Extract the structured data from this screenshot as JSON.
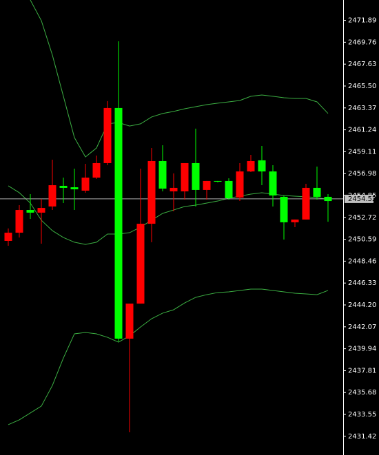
{
  "chart_data": {
    "type": "candlestick",
    "categories": [
      null,
      null,
      null,
      null,
      null,
      null,
      null,
      null,
      null,
      null,
      null,
      null,
      null,
      null,
      null,
      null,
      null,
      null,
      null,
      null,
      null,
      null,
      null,
      null,
      null,
      null,
      null,
      null,
      null,
      null
    ],
    "open": [
      2450.43,
      2451.23,
      2453.44,
      2453.18,
      2453.78,
      2455.79,
      2455.65,
      2455.32,
      2456.59,
      2458.0,
      2463.36,
      2440.92,
      2444.33,
      2452.1,
      2458.2,
      2455.25,
      2455.25,
      2458.0,
      2455.39,
      2456.26,
      2456.26,
      2454.65,
      2457.19,
      2458.27,
      2457.19,
      2454.72,
      2452.24,
      2452.51,
      2455.59,
      2454.72
    ],
    "high": [
      2451.64,
      2453.91,
      2454.98,
      2454.52,
      2458.33,
      2456.59,
      2457.46,
      2457.93,
      2458.73,
      2464.03,
      2469.85,
      2444.33,
      2457.46,
      2459.47,
      2459.74,
      2457.0,
      2458.0,
      2461.35,
      2456.26,
      2456.26,
      2456.52,
      2458.0,
      2458.8,
      2459.67,
      2457.8,
      2454.85,
      2452.51,
      2455.99,
      2457.66,
      2454.98
    ],
    "low": [
      2449.96,
      2450.76,
      2452.57,
      2450.16,
      2453.44,
      2454.11,
      2453.44,
      2455.12,
      2456.46,
      2457.8,
      2440.65,
      2431.81,
      2444.33,
      2450.3,
      2455.25,
      2453.31,
      2454.45,
      2453.78,
      2454.45,
      2456.12,
      2454.45,
      2454.31,
      2457.13,
      2455.85,
      2453.78,
      2450.56,
      2451.77,
      2452.51,
      2454.45,
      2452.3
    ],
    "close": [
      2451.23,
      2453.44,
      2453.18,
      2453.64,
      2455.85,
      2455.59,
      2455.45,
      2456.59,
      2458.0,
      2463.36,
      2440.92,
      2444.33,
      2452.1,
      2458.2,
      2455.52,
      2455.59,
      2458.0,
      2455.39,
      2456.26,
      2456.19,
      2454.58,
      2457.19,
      2458.2,
      2457.19,
      2454.85,
      2452.24,
      2452.51,
      2455.59,
      2454.72,
      2454.31
    ],
    "up_color": "#ff0000",
    "down_color": "#00ff00",
    "bands": [
      {
        "color": "#3cb043",
        "values": [
          null,
          null,
          2473.87,
          2471.86,
          2468.51,
          2464.5,
          2460.48,
          2458.6,
          2459.47,
          2461.82,
          2461.95,
          2461.61,
          2461.82,
          2462.49,
          2462.83,
          2463.03,
          2463.29,
          2463.49,
          2463.69,
          2463.83,
          2463.96,
          2464.09,
          2464.5,
          2464.63,
          2464.5,
          2464.36,
          2464.29,
          2464.29,
          2463.96,
          2462.83
        ]
      },
      {
        "color": "#3cb043",
        "values": [
          2455.79,
          2455.12,
          2454.11,
          2452.44,
          2451.43,
          2450.76,
          2450.3,
          2450.09,
          2450.3,
          2451.1,
          2451.1,
          2451.23,
          2451.77,
          2452.44,
          2453.11,
          2453.44,
          2453.78,
          2453.91,
          2454.11,
          2454.31,
          2454.58,
          2454.78,
          2454.98,
          2455.12,
          2454.98,
          2454.85,
          2454.78,
          2454.72,
          2454.65,
          2454.45
        ]
      },
      {
        "color": "#3cb043",
        "values": [
          2432.55,
          2433.02,
          2433.69,
          2434.36,
          2436.36,
          2439.04,
          2441.39,
          2441.52,
          2441.39,
          2441.05,
          2440.58,
          2441.19,
          2442.06,
          2442.86,
          2443.4,
          2443.73,
          2444.4,
          2444.94,
          2445.2,
          2445.41,
          2445.47,
          2445.61,
          2445.74,
          2445.74,
          2445.61,
          2445.47,
          2445.34,
          2445.27,
          2445.2,
          2445.61
        ]
      }
    ],
    "current_price": 2454.52,
    "ylim": [
      2429.6,
      2473.87
    ],
    "yticks": [
      2471.89,
      2469.76,
      2467.63,
      {
        "value": 2465.5,
        "label": "2465.50"
      },
      2463.37,
      2461.24,
      2459.11,
      2456.98,
      2454.85,
      2452.72,
      2450.59,
      2448.46,
      2446.33,
      {
        "value": 2444.2,
        "label": "2444.20"
      },
      2442.07,
      2439.94,
      2437.81,
      2435.68,
      2433.55,
      2431.42
    ]
  }
}
